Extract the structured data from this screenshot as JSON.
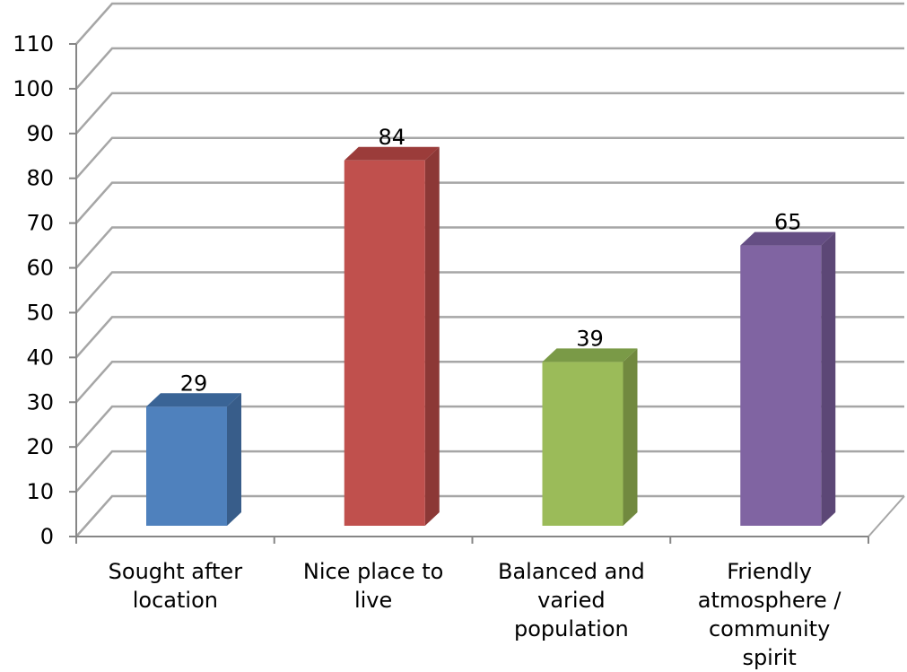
{
  "chart_data": {
    "type": "bar",
    "title": "",
    "xlabel": "",
    "ylabel": "",
    "ylim": [
      0,
      110
    ],
    "yticks": [
      0,
      10,
      20,
      30,
      40,
      50,
      60,
      70,
      80,
      90,
      100,
      110
    ],
    "grid": true,
    "legend": "none",
    "style": "3d",
    "categories": [
      [
        "Sought after",
        "location"
      ],
      [
        "Nice place to",
        "live"
      ],
      [
        "Balanced and",
        "varied",
        "population"
      ],
      [
        "Friendly",
        "atmosphere /",
        "community",
        "spirit"
      ]
    ],
    "values": [
      29,
      84,
      39,
      65
    ],
    "data_labels": [
      "29",
      "84",
      "39",
      "65"
    ],
    "colors": [
      {
        "front": "#4F81BD",
        "side": "#385D8A",
        "top": "#3A6496"
      },
      {
        "front": "#C0504D",
        "side": "#8C3836",
        "top": "#9B3C3A"
      },
      {
        "front": "#9BBB59",
        "side": "#71893F",
        "top": "#7A9A47"
      },
      {
        "front": "#8064A2",
        "side": "#5C4776",
        "top": "#654E84"
      }
    ],
    "grid_color": "#A6A6A6",
    "axis_color": "#868686"
  }
}
